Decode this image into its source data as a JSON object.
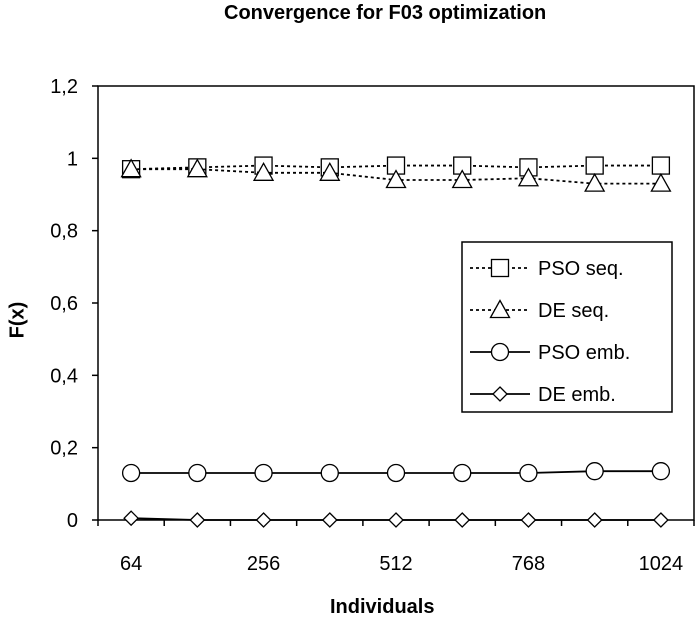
{
  "chart_data": {
    "type": "line",
    "title": "Convergence for F03 optimization",
    "xlabel": "Individuals",
    "ylabel": "F(x)",
    "x_points": [
      64,
      160,
      256,
      352,
      512,
      608,
      768,
      864,
      1024
    ],
    "x_tick_labels": [
      "64",
      "256",
      "512",
      "768",
      "1024"
    ],
    "y_tick_labels": [
      "0",
      "0,2",
      "0,4",
      "0,6",
      "0,8",
      "1",
      "1,2"
    ],
    "y_ticks": [
      0,
      0.2,
      0.4,
      0.6,
      0.8,
      1.0,
      1.2
    ],
    "ylim": [
      0,
      1.2
    ],
    "grid": false,
    "legend_position": "right",
    "series": [
      {
        "name": "PSO seq.",
        "marker": "square",
        "line": "dotted",
        "values": [
          0.97,
          0.975,
          0.98,
          0.975,
          0.98,
          0.98,
          0.975,
          0.98,
          0.98
        ]
      },
      {
        "name": "DE seq.",
        "marker": "triangle",
        "line": "dotted",
        "values": [
          0.97,
          0.97,
          0.96,
          0.96,
          0.94,
          0.94,
          0.945,
          0.93,
          0.93
        ]
      },
      {
        "name": "PSO emb.",
        "marker": "circle",
        "line": "solid",
        "values": [
          0.13,
          0.13,
          0.13,
          0.13,
          0.13,
          0.13,
          0.13,
          0.135,
          0.135
        ]
      },
      {
        "name": "DE emb.",
        "marker": "diamond",
        "line": "solid",
        "values": [
          0.005,
          0.0,
          0.0,
          0.0,
          0.0,
          0.0,
          0.0,
          0.0,
          0.0
        ]
      }
    ]
  }
}
